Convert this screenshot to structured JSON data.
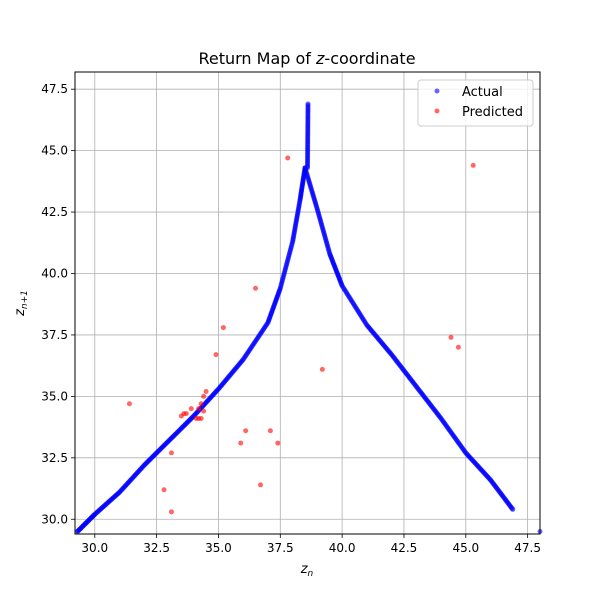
{
  "chart_data": {
    "type": "scatter",
    "title": "Return Map of z-coordinate",
    "xlabel": "z_n",
    "ylabel": "z_{n+1}",
    "xlim": [
      29.2,
      48.0
    ],
    "ylim": [
      29.4,
      48.2
    ],
    "xticks": [
      "30.0",
      "32.5",
      "35.0",
      "37.5",
      "40.0",
      "42.5",
      "45.0",
      "47.5"
    ],
    "yticks": [
      "30.0",
      "32.5",
      "35.0",
      "37.5",
      "40.0",
      "42.5",
      "45.0",
      "47.5"
    ],
    "grid": true,
    "legend": "top-right",
    "series": [
      {
        "name": "Actual",
        "color": "#0000ff",
        "shape": "tent-return-map",
        "left_branch": [
          [
            29.3,
            29.5
          ],
          [
            30.0,
            30.2
          ],
          [
            31.0,
            31.1
          ],
          [
            32.0,
            32.2
          ],
          [
            33.0,
            33.2
          ],
          [
            34.0,
            34.2
          ],
          [
            35.0,
            35.3
          ],
          [
            36.0,
            36.5
          ],
          [
            37.0,
            38.0
          ],
          [
            37.5,
            39.4
          ],
          [
            38.0,
            41.3
          ],
          [
            38.3,
            43.0
          ],
          [
            38.5,
            44.3
          ]
        ],
        "right_branch": [
          [
            38.5,
            44.3
          ],
          [
            39.0,
            42.6
          ],
          [
            39.5,
            40.8
          ],
          [
            40.0,
            39.5
          ],
          [
            41.0,
            37.9
          ],
          [
            42.0,
            36.7
          ],
          [
            43.0,
            35.4
          ],
          [
            44.0,
            34.1
          ],
          [
            45.0,
            32.7
          ],
          [
            46.0,
            31.6
          ],
          [
            46.9,
            30.4
          ]
        ],
        "spike": [
          [
            38.6,
            44.3
          ],
          [
            38.62,
            46.9
          ]
        ],
        "stray": [
          [
            48.0,
            29.5
          ]
        ]
      },
      {
        "name": "Predicted",
        "color": "#ff0000",
        "points": [
          [
            31.4,
            34.7
          ],
          [
            32.8,
            31.2
          ],
          [
            33.1,
            32.7
          ],
          [
            33.1,
            30.3
          ],
          [
            33.5,
            34.2
          ],
          [
            33.6,
            34.3
          ],
          [
            33.7,
            34.3
          ],
          [
            33.9,
            34.5
          ],
          [
            34.1,
            34.1
          ],
          [
            34.2,
            34.1
          ],
          [
            34.3,
            34.1
          ],
          [
            34.2,
            34.5
          ],
          [
            34.4,
            34.4
          ],
          [
            34.3,
            34.7
          ],
          [
            34.4,
            35.0
          ],
          [
            34.5,
            35.2
          ],
          [
            34.9,
            36.7
          ],
          [
            35.2,
            37.8
          ],
          [
            35.9,
            33.1
          ],
          [
            36.1,
            33.6
          ],
          [
            36.5,
            39.4
          ],
          [
            36.7,
            31.4
          ],
          [
            37.1,
            33.6
          ],
          [
            37.4,
            33.1
          ],
          [
            37.8,
            44.7
          ],
          [
            39.2,
            36.1
          ],
          [
            44.4,
            37.4
          ],
          [
            44.7,
            37.0
          ],
          [
            45.3,
            44.4
          ]
        ]
      }
    ]
  }
}
